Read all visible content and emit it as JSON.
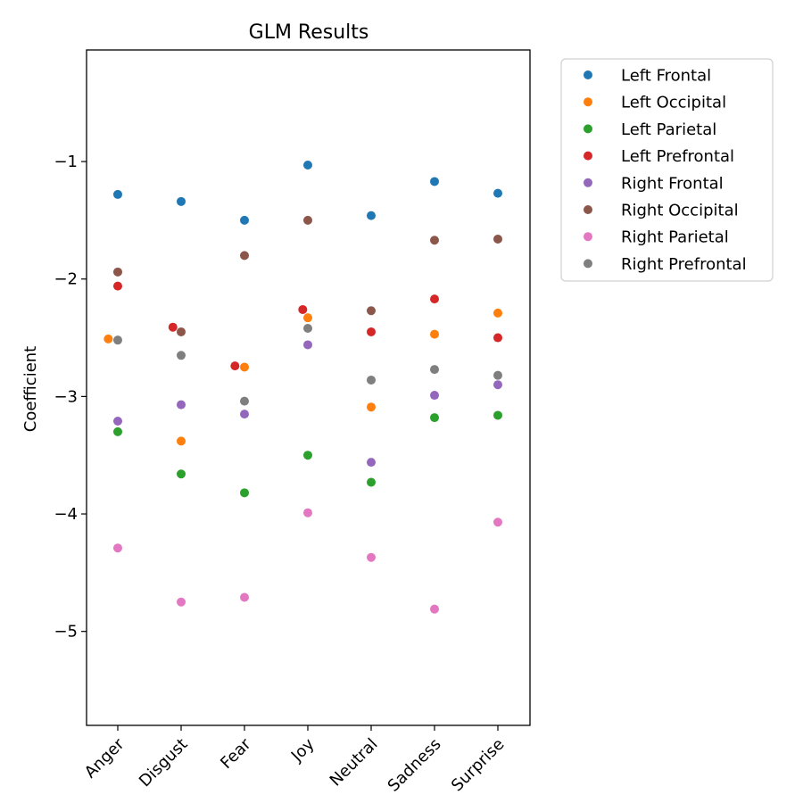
{
  "chart_data": {
    "type": "scatter",
    "title": "GLM Results",
    "xlabel": "",
    "ylabel": "Coefficient",
    "categories": [
      "Anger",
      "Disgust",
      "Fear",
      "Joy",
      "Neutral",
      "Sadness",
      "Surprise"
    ],
    "ylim": [
      -5.8,
      -0.05
    ],
    "yticks": [
      -1,
      -2,
      -3,
      -4,
      -5
    ],
    "ytick_labels": [
      "−1",
      "−2",
      "−3",
      "−4",
      "−5"
    ],
    "grid": false,
    "legend_position": "outside-right",
    "series": [
      {
        "name": "Left Frontal",
        "color": "#1f77b4",
        "values": [
          -1.28,
          -1.34,
          -1.5,
          -1.03,
          -1.46,
          -1.17,
          -1.27
        ],
        "offsets": [
          0,
          0,
          0,
          0,
          0,
          0,
          0
        ]
      },
      {
        "name": "Left Occipital",
        "color": "#ff7f0e",
        "values": [
          -2.51,
          -3.38,
          -2.75,
          -2.33,
          -3.09,
          -2.47,
          -2.29
        ],
        "offsets": [
          -0.15,
          0,
          0,
          0,
          0,
          0,
          0
        ]
      },
      {
        "name": "Left Parietal",
        "color": "#2ca02c",
        "values": [
          -3.3,
          -3.66,
          -3.82,
          -3.5,
          -3.73,
          -3.18,
          -3.16
        ],
        "offsets": [
          0,
          0,
          0,
          0,
          0,
          0,
          0
        ]
      },
      {
        "name": "Left Prefrontal",
        "color": "#d62728",
        "values": [
          -2.06,
          -2.41,
          -2.74,
          -2.26,
          -2.45,
          -2.17,
          -2.5
        ],
        "offsets": [
          0,
          -0.13,
          -0.15,
          -0.08,
          0,
          0,
          0
        ]
      },
      {
        "name": "Right Frontal",
        "color": "#9467bd",
        "values": [
          -3.21,
          -3.07,
          -3.15,
          -2.56,
          -3.56,
          -2.99,
          -2.9
        ],
        "offsets": [
          0,
          0,
          0,
          0,
          0,
          0,
          0
        ]
      },
      {
        "name": "Right Occipital",
        "color": "#8c564b",
        "values": [
          -1.94,
          -2.45,
          -1.8,
          -1.5,
          -2.27,
          -1.67,
          -1.66
        ],
        "offsets": [
          0,
          0,
          0,
          0,
          0,
          0,
          0
        ]
      },
      {
        "name": "Right Parietal",
        "color": "#e377c2",
        "values": [
          -4.29,
          -4.75,
          -4.71,
          -3.99,
          -4.37,
          -4.81,
          -4.07
        ],
        "offsets": [
          0,
          0,
          0,
          0,
          0,
          0,
          0
        ]
      },
      {
        "name": "Right Prefrontal",
        "color": "#7f7f7f",
        "values": [
          -2.52,
          -2.65,
          -3.04,
          -2.42,
          -2.86,
          -2.77,
          -2.82
        ],
        "offsets": [
          0,
          0,
          0,
          0,
          0,
          0,
          0
        ]
      }
    ]
  }
}
